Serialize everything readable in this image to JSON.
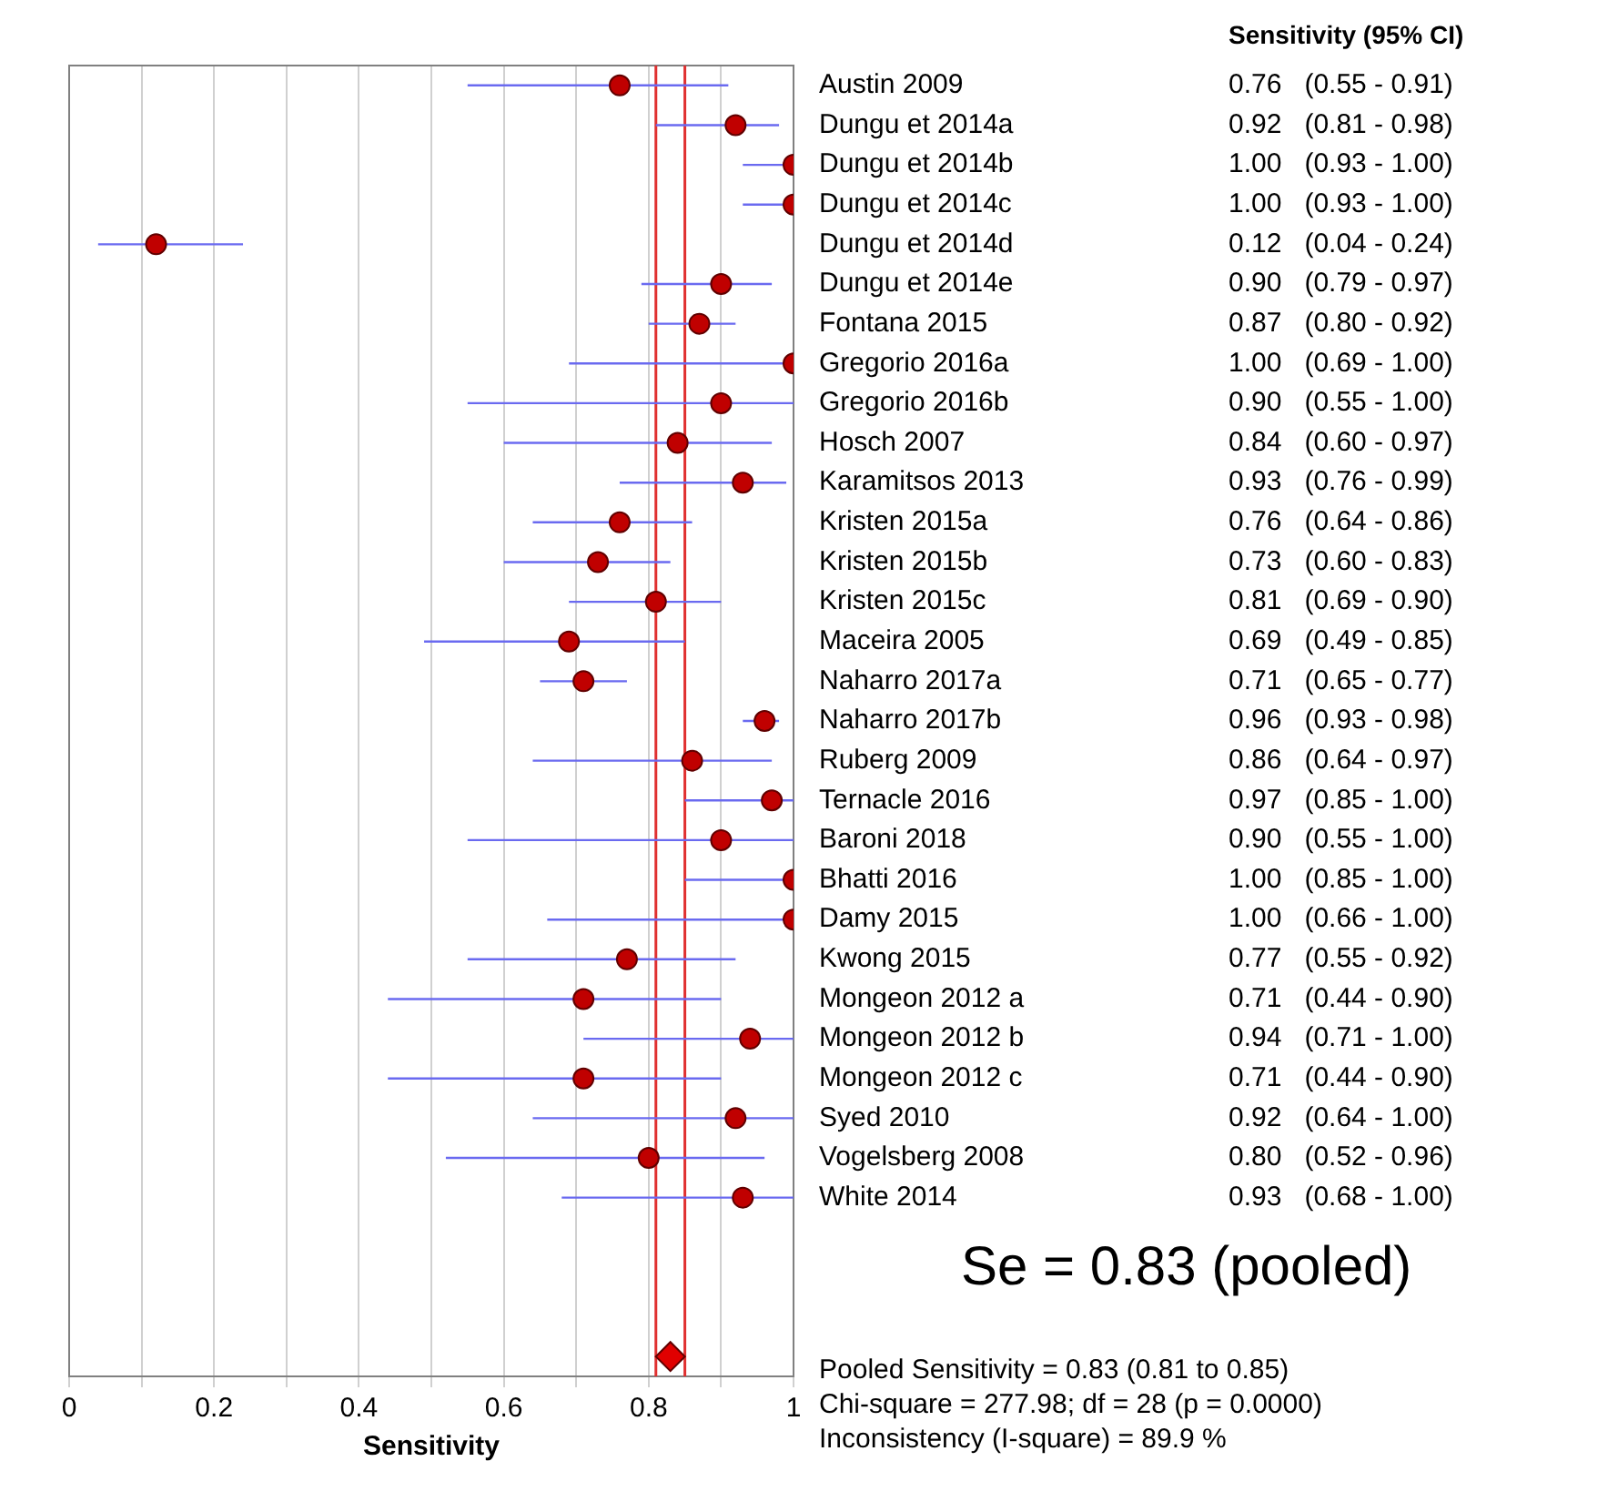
{
  "chart_data": {
    "type": "scatter",
    "orientation": "horizontal",
    "xlabel": "Sensitivity",
    "categories": [
      "Austin 2009",
      "Dungu et 2014a",
      "Dungu et 2014b",
      "Dungu et 2014c",
      "Dungu et 2014d",
      "Dungu et 2014e",
      "Fontana 2015",
      "Gregorio 2016a",
      "Gregorio 2016b",
      "Hosch 2007",
      "Karamitsos 2013",
      "Kristen 2015a",
      "Kristen 2015b",
      "Kristen 2015c",
      "Maceira 2005",
      "Naharro 2017a",
      "Naharro 2017b",
      "Ruberg 2009",
      "Ternacle 2016",
      "Baroni 2018",
      "Bhatti 2016",
      "Damy 2015",
      "Kwong 2015",
      "Mongeon 2012 a",
      "Mongeon 2012 b",
      "Mongeon 2012 c",
      "Syed 2010",
      "Vogelsberg 2008",
      "White 2014",
      null,
      null,
      null,
      null
    ],
    "series": [
      {
        "marker": "circle",
        "color": "#c00000",
        "values": [
          0.76,
          0.92,
          1.0,
          1.0,
          0.12,
          0.9,
          0.87,
          1.0,
          0.9,
          0.84,
          0.93,
          0.76,
          0.73,
          0.81,
          0.69,
          0.71,
          0.96,
          0.86,
          0.97,
          0.9,
          1.0,
          1.0,
          0.77,
          0.71,
          0.94,
          0.71,
          0.92,
          0.8,
          0.93,
          null,
          null,
          null,
          null
        ],
        "errors": [
          [
            0.55,
            0.91
          ],
          [
            0.81,
            0.98
          ],
          [
            0.93,
            1.0
          ],
          [
            0.93,
            1.0
          ],
          [
            0.04,
            0.24
          ],
          [
            0.79,
            0.97
          ],
          [
            0.8,
            0.92
          ],
          [
            0.69,
            1.0
          ],
          [
            0.55,
            1.0
          ],
          [
            0.6,
            0.97
          ],
          [
            0.76,
            0.99
          ],
          [
            0.64,
            0.86
          ],
          [
            0.6,
            0.83
          ],
          [
            0.69,
            0.9
          ],
          [
            0.49,
            0.85
          ],
          [
            0.65,
            0.77
          ],
          [
            0.93,
            0.98
          ],
          [
            0.64,
            0.97
          ],
          [
            0.85,
            1.0
          ],
          [
            0.55,
            1.0
          ],
          [
            0.85,
            1.0
          ],
          [
            0.66,
            1.0
          ],
          [
            0.55,
            0.92
          ],
          [
            0.44,
            0.9
          ],
          [
            0.71,
            1.0
          ],
          [
            0.44,
            0.9
          ],
          [
            0.64,
            1.0
          ],
          [
            0.52,
            0.96
          ],
          [
            0.68,
            1.0
          ],
          null,
          null,
          null,
          null
        ],
        "value_labels": [
          "0.76   (0.55 - 0.91)",
          "0.92   (0.81 - 0.98)",
          "1.00   (0.93 - 1.00)",
          "1.00   (0.93 - 1.00)",
          "0.12   (0.04 - 0.24)",
          "0.90   (0.79 - 0.97)",
          "0.87   (0.80 - 0.92)",
          "1.00   (0.69 - 1.00)",
          "0.90   (0.55 - 1.00)",
          "0.84   (0.60 - 0.97)",
          "0.93   (0.76 - 0.99)",
          "0.76   (0.64 - 0.86)",
          "0.73   (0.60 - 0.83)",
          "0.81   (0.69 - 0.90)",
          "0.69   (0.49 - 0.85)",
          "0.71   (0.65 - 0.77)",
          "0.96   (0.93 - 0.98)",
          "0.86   (0.64 - 0.97)",
          "0.97   (0.85 - 1.00)",
          "0.90   (0.55 - 1.00)",
          "1.00   (0.85 - 1.00)",
          "1.00   (0.66 - 1.00)",
          "0.77   (0.55 - 0.92)",
          "0.71   (0.44 - 0.90)",
          "0.94   (0.71 - 1.00)",
          "0.71   (0.44 - 0.90)",
          "0.92   (0.64 - 1.00)",
          "0.80   (0.52 - 0.96)",
          "0.93   (0.68 - 1.00)",
          null,
          null,
          null,
          null
        ]
      },
      {
        "marker": "diamond",
        "color": "#e00000",
        "values": [
          null,
          null,
          null,
          null,
          null,
          null,
          null,
          null,
          null,
          null,
          null,
          null,
          null,
          null,
          null,
          null,
          null,
          null,
          null,
          null,
          null,
          null,
          null,
          null,
          null,
          null,
          null,
          null,
          null,
          null,
          null,
          null,
          0.83
        ]
      }
    ],
    "xlim": [
      0,
      1
    ],
    "xticks": [
      0,
      {
        "value": 0.1,
        "label": null
      },
      0.2,
      {
        "value": 0.3,
        "label": null
      },
      0.4,
      {
        "value": 0.5,
        "label": null
      },
      0.6,
      {
        "value": 0.7,
        "label": null
      },
      0.8,
      {
        "value": 0.9,
        "label": null
      },
      1
    ],
    "grid": "x",
    "ref_lines": [
      {
        "axis": "x",
        "value": 0.81,
        "color": "#e03030"
      },
      {
        "axis": "x",
        "value": 0.85,
        "color": "#e03030"
      }
    ],
    "annotations": [
      "Sensitivity (95% CI)",
      "Se = 0.83 (pooled)",
      "Pooled Sensitivity = 0.83 (0.81 to 0.85)",
      "Chi-square = 277.98; df = 28 (p = 0.0000)",
      "Inconsistency (I-square) = 89.9 %"
    ]
  }
}
